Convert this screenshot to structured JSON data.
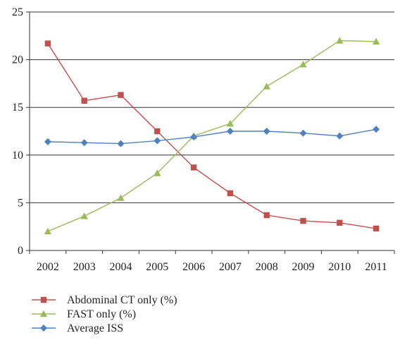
{
  "chart_data": {
    "type": "line",
    "title": "",
    "xlabel": "",
    "ylabel": "",
    "categories": [
      "2002",
      "2003",
      "2004",
      "2005",
      "2006",
      "2007",
      "2008",
      "2009",
      "2010",
      "2011"
    ],
    "ylim": [
      0,
      25
    ],
    "yticks": [
      "0",
      "5",
      "10",
      "15",
      "20",
      "25"
    ],
    "grid": "horizontal",
    "legend_position": "bottom-left",
    "series": [
      {
        "name": "Abdominal CT only (%)",
        "marker": "square",
        "color": "#c0504d",
        "values": [
          21.7,
          15.7,
          16.3,
          12.5,
          8.7,
          6.0,
          3.7,
          3.1,
          2.9,
          2.3
        ]
      },
      {
        "name": "FAST only (%)",
        "marker": "triangle",
        "color": "#9bbb59",
        "values": [
          2.0,
          3.6,
          5.5,
          8.1,
          12.0,
          13.3,
          17.2,
          19.5,
          22.0,
          21.9
        ]
      },
      {
        "name": "Average ISS",
        "marker": "diamond",
        "color": "#4f81bd",
        "values": [
          11.4,
          11.3,
          11.2,
          11.5,
          11.9,
          12.5,
          12.5,
          12.3,
          12.0,
          12.7
        ]
      }
    ]
  }
}
